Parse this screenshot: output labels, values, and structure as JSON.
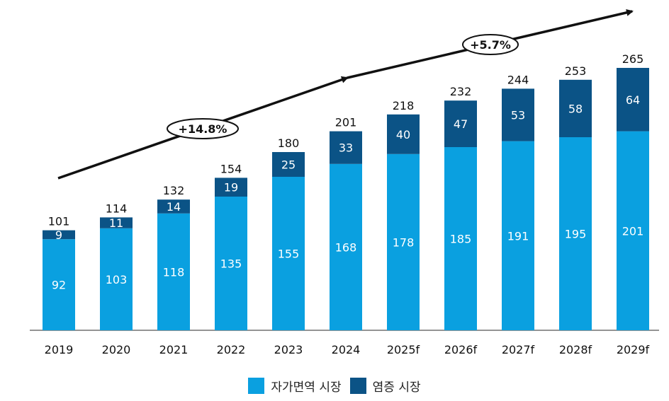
{
  "chart_data": {
    "type": "bar",
    "stacked": true,
    "categories": [
      "2019",
      "2020",
      "2021",
      "2022",
      "2023",
      "2024",
      "2025f",
      "2026f",
      "2027f",
      "2028f",
      "2029f"
    ],
    "series": [
      {
        "name": "자가면역 시장",
        "color": "#0aa0e0",
        "label_color": "#ffffff",
        "values": [
          92,
          103,
          118,
          135,
          155,
          168,
          178,
          185,
          191,
          195,
          201
        ]
      },
      {
        "name": "염증 시장",
        "color": "#0b5386",
        "label_color": "#ffffff",
        "values": [
          9,
          11,
          14,
          19,
          25,
          33,
          40,
          47,
          53,
          58,
          64
        ]
      }
    ],
    "totals": [
      101,
      114,
      132,
      154,
      180,
      201,
      218,
      232,
      244,
      253,
      265
    ],
    "ylim": [
      0,
      290
    ],
    "grid": false,
    "legend_position": "bottom",
    "annotations": [
      {
        "text": "+14.8%",
        "from": "2019",
        "to": "2024"
      },
      {
        "text": "+5.7%",
        "from": "2024",
        "to": "2029f"
      }
    ]
  }
}
